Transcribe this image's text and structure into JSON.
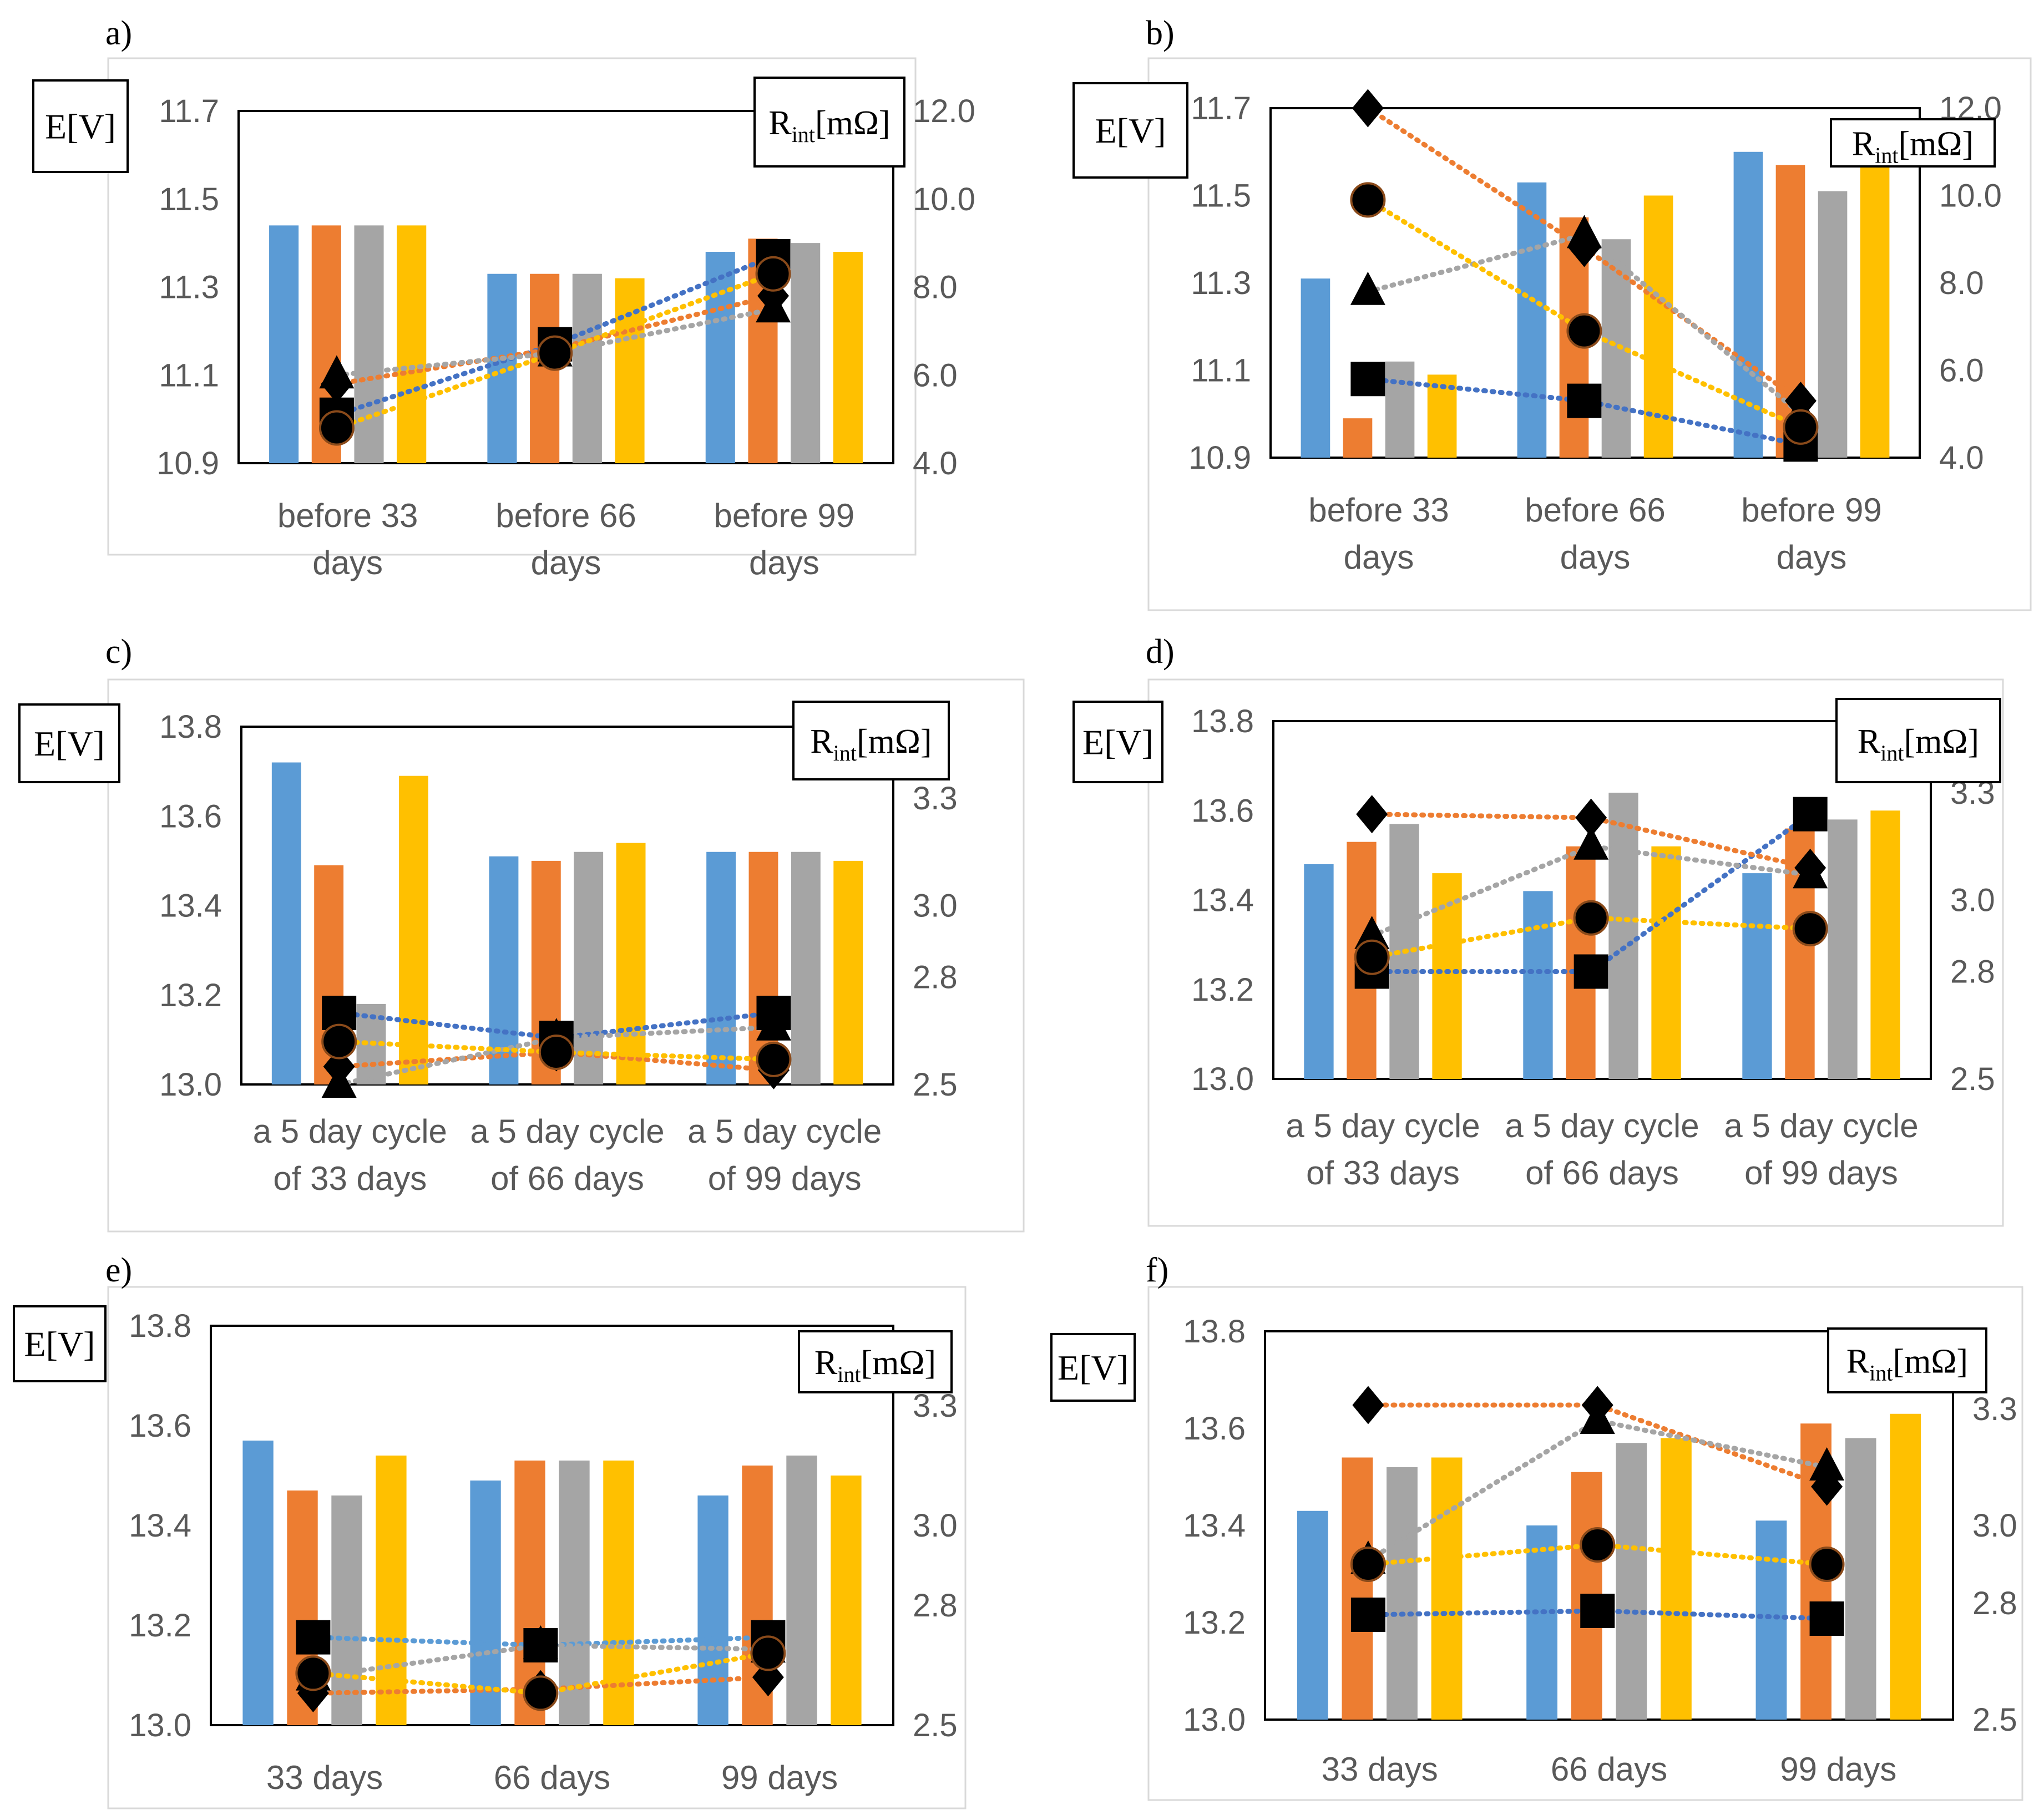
{
  "figure": {
    "layout": "3 rows x 2 columns",
    "series_colors": [
      "#5B9BD5",
      "#ED7D31",
      "#A5A5A5",
      "#FFC000"
    ],
    "marker_edge_color": "#000000"
  },
  "chart_data": [
    {
      "panel_label": "a)",
      "type": "bar",
      "left_axis_label": "E[V]",
      "right_axis_label": {
        "base": "R",
        "sub": "int",
        "unit": "[mΩ]"
      },
      "categories": [
        [
          "before  33",
          "days"
        ],
        [
          "before 66",
          "days"
        ],
        [
          "before 99",
          "days"
        ]
      ],
      "y_left": {
        "min": 10.9,
        "max": 11.7,
        "ticks": [
          "10.9",
          "11.1",
          "11.3",
          "11.5",
          "11.7"
        ]
      },
      "y_right": {
        "min": 4.0,
        "max": 12.0,
        "ticks": [
          "4.0",
          "6.0",
          "8.0",
          "10.0",
          "12.0"
        ]
      },
      "bars": [
        {
          "color": "#5B9BD5",
          "values": [
            11.44,
            11.33,
            11.38
          ]
        },
        {
          "color": "#ED7D31",
          "values": [
            11.44,
            11.33,
            11.41
          ]
        },
        {
          "color": "#A5A5A5",
          "values": [
            11.44,
            11.33,
            11.4
          ]
        },
        {
          "color": "#FFC000",
          "values": [
            11.44,
            11.32,
            11.38
          ]
        }
      ],
      "lines": [
        {
          "color": "#4472C4",
          "marker": "square",
          "values": [
            5.1,
            6.7,
            8.7
          ]
        },
        {
          "color": "#ED7D31",
          "marker": "diamond",
          "values": [
            5.8,
            6.6,
            7.8
          ]
        },
        {
          "color": "#A5A5A5",
          "marker": "triangle",
          "values": [
            6.0,
            6.5,
            7.5
          ]
        },
        {
          "color": "#FFC000",
          "marker": "circle",
          "values": [
            4.8,
            6.5,
            8.3
          ]
        }
      ]
    },
    {
      "panel_label": "b)",
      "type": "bar",
      "left_axis_label": "E[V]",
      "right_axis_label": {
        "base": "R",
        "sub": "int",
        "unit": "[mΩ]"
      },
      "categories": [
        [
          "before  33",
          "days"
        ],
        [
          "before 66",
          "days"
        ],
        [
          "before 99",
          "days"
        ]
      ],
      "y_left": {
        "min": 10.9,
        "max": 11.7,
        "ticks": [
          "10.9",
          "11.1",
          "11.3",
          "11.5",
          "11.7"
        ]
      },
      "y_right": {
        "min": 4.0,
        "max": 12.0,
        "ticks": [
          "4.0",
          "6.0",
          "8.0",
          "10.0",
          "12.0"
        ]
      },
      "bars": [
        {
          "color": "#5B9BD5",
          "values": [
            11.31,
            11.53,
            11.6
          ]
        },
        {
          "color": "#ED7D31",
          "values": [
            10.99,
            11.45,
            11.57
          ]
        },
        {
          "color": "#A5A5A5",
          "values": [
            11.12,
            11.4,
            11.51
          ]
        },
        {
          "color": "#FFC000",
          "values": [
            11.09,
            11.5,
            11.59
          ]
        }
      ],
      "lines": [
        {
          "color": "#4472C4",
          "marker": "square",
          "values": [
            5.8,
            5.3,
            4.3
          ]
        },
        {
          "color": "#ED7D31",
          "marker": "diamond",
          "values": [
            12.0,
            8.8,
            5.3
          ]
        },
        {
          "color": "#A5A5A5",
          "marker": "triangle",
          "values": [
            7.8,
            9.1,
            5.0
          ]
        },
        {
          "color": "#FFC000",
          "marker": "circle",
          "values": [
            9.9,
            6.9,
            4.7
          ]
        }
      ]
    },
    {
      "panel_label": "c)",
      "type": "bar",
      "left_axis_label": "E[V]",
      "right_axis_label": {
        "base": "R",
        "sub": "int",
        "unit": "[mΩ]"
      },
      "categories": [
        [
          "a 5 day cycle",
          "of 33 days"
        ],
        [
          "a 5 day cycle",
          "of 66 days"
        ],
        [
          "a 5 day cycle",
          "of 99 days"
        ]
      ],
      "y_left": {
        "min": 13.0,
        "max": 13.8,
        "ticks": [
          "13.0",
          "13.2",
          "13.4",
          "13.6",
          "13.8"
        ]
      },
      "y_right": {
        "min": 2.5,
        "max": 3.5,
        "ticks": [
          "2.5",
          "2.8",
          "3.0",
          "3.3"
        ]
      },
      "bars": [
        {
          "color": "#5B9BD5",
          "values": [
            13.72,
            13.51,
            13.52
          ]
        },
        {
          "color": "#ED7D31",
          "values": [
            13.49,
            13.5,
            13.52
          ]
        },
        {
          "color": "#A5A5A5",
          "values": [
            13.18,
            13.52,
            13.52
          ]
        },
        {
          "color": "#FFC000",
          "values": [
            13.69,
            13.54,
            13.5
          ]
        }
      ],
      "lines": [
        {
          "color": "#4472C4",
          "marker": "square",
          "values": [
            2.7,
            2.63,
            2.7
          ]
        },
        {
          "color": "#ED7D31",
          "marker": "diamond",
          "values": [
            2.55,
            2.59,
            2.54
          ]
        },
        {
          "color": "#A5A5A5",
          "marker": "triangle",
          "values": [
            2.5,
            2.63,
            2.66
          ]
        },
        {
          "color": "#FFC000",
          "marker": "circle",
          "values": [
            2.62,
            2.59,
            2.57
          ]
        }
      ]
    },
    {
      "panel_label": "d)",
      "type": "bar",
      "left_axis_label": "E[V]",
      "right_axis_label": {
        "base": "R",
        "sub": "int",
        "unit": "[mΩ]"
      },
      "categories": [
        [
          "a 5 day cycle",
          "of 33 days"
        ],
        [
          "a 5 day cycle",
          "of 66 days"
        ],
        [
          "a 5 day cycle",
          "of 99 days"
        ]
      ],
      "y_left": {
        "min": 13.0,
        "max": 13.8,
        "ticks": [
          "13.0",
          "13.2",
          "13.4",
          "13.6",
          "13.8"
        ]
      },
      "y_right": {
        "min": 2.5,
        "max": 3.5,
        "ticks": [
          "2.5",
          "2.8",
          "3.0",
          "3.3"
        ]
      },
      "bars": [
        {
          "color": "#5B9BD5",
          "values": [
            13.48,
            13.42,
            13.46
          ]
        },
        {
          "color": "#ED7D31",
          "values": [
            13.53,
            13.52,
            13.56
          ]
        },
        {
          "color": "#A5A5A5",
          "values": [
            13.57,
            13.64,
            13.58
          ]
        },
        {
          "color": "#FFC000",
          "values": [
            13.46,
            13.52,
            13.6
          ]
        }
      ],
      "lines": [
        {
          "color": "#4472C4",
          "marker": "square",
          "values": [
            2.8,
            2.8,
            3.24
          ]
        },
        {
          "color": "#ED7D31",
          "marker": "diamond",
          "values": [
            3.24,
            3.23,
            3.09
          ]
        },
        {
          "color": "#A5A5A5",
          "marker": "triangle",
          "values": [
            2.9,
            3.15,
            3.07
          ]
        },
        {
          "color": "#FFC000",
          "marker": "circle",
          "values": [
            2.84,
            2.95,
            2.92
          ]
        }
      ]
    },
    {
      "panel_label": "e)",
      "type": "bar",
      "left_axis_label": "E[V]",
      "right_axis_label": {
        "base": "R",
        "sub": "int",
        "unit": "[mΩ]"
      },
      "categories": [
        [
          "33 days"
        ],
        [
          "66 days"
        ],
        [
          "99 days"
        ]
      ],
      "y_left": {
        "min": 13.0,
        "max": 13.8,
        "ticks": [
          "13.0",
          "13.2",
          "13.4",
          "13.6",
          "13.8"
        ]
      },
      "y_right": {
        "min": 2.5,
        "max": 3.5,
        "ticks": [
          "2.5",
          "2.8",
          "3.0",
          "3.3"
        ]
      },
      "bars": [
        {
          "color": "#5B9BD5",
          "values": [
            13.57,
            13.49,
            13.46
          ]
        },
        {
          "color": "#ED7D31",
          "values": [
            13.47,
            13.53,
            13.52
          ]
        },
        {
          "color": "#A5A5A5",
          "values": [
            13.46,
            13.53,
            13.54
          ]
        },
        {
          "color": "#FFC000",
          "values": [
            13.54,
            13.53,
            13.5
          ]
        }
      ],
      "lines": [
        {
          "color": "#5B9BD5",
          "marker": "square",
          "values": [
            2.72,
            2.7,
            2.72
          ]
        },
        {
          "color": "#ED7D31",
          "marker": "diamond",
          "values": [
            2.58,
            2.59,
            2.62
          ]
        },
        {
          "color": "#A5A5A5",
          "marker": "triangle",
          "values": [
            2.62,
            2.7,
            2.69
          ]
        },
        {
          "color": "#FFC000",
          "marker": "circle",
          "values": [
            2.63,
            2.58,
            2.68
          ]
        }
      ]
    },
    {
      "panel_label": "f)",
      "type": "bar",
      "left_axis_label": "E[V]",
      "right_axis_label": {
        "base": "R",
        "sub": "int",
        "unit": "[mΩ]"
      },
      "categories": [
        [
          "33 days"
        ],
        [
          "66 days"
        ],
        [
          "99 days"
        ]
      ],
      "y_left": {
        "min": 13.0,
        "max": 13.8,
        "ticks": [
          "13.0",
          "13.2",
          "13.4",
          "13.6",
          "13.8"
        ]
      },
      "y_right": {
        "min": 2.5,
        "max": 3.5,
        "ticks": [
          "2.5",
          "2.8",
          "3.0",
          "3.3"
        ]
      },
      "bars": [
        {
          "color": "#5B9BD5",
          "values": [
            13.43,
            13.4,
            13.41
          ]
        },
        {
          "color": "#ED7D31",
          "values": [
            13.54,
            13.51,
            13.61
          ]
        },
        {
          "color": "#A5A5A5",
          "values": [
            13.52,
            13.57,
            13.58
          ]
        },
        {
          "color": "#FFC000",
          "values": [
            13.54,
            13.58,
            13.63
          ]
        }
      ],
      "lines": [
        {
          "color": "#4472C4",
          "marker": "square",
          "values": [
            2.77,
            2.78,
            2.76
          ]
        },
        {
          "color": "#ED7D31",
          "marker": "diamond",
          "values": [
            3.31,
            3.31,
            3.1
          ]
        },
        {
          "color": "#A5A5A5",
          "marker": "triangle",
          "values": [
            2.91,
            3.27,
            3.15
          ]
        },
        {
          "color": "#FFC000",
          "marker": "circle",
          "values": [
            2.9,
            2.95,
            2.9
          ]
        }
      ]
    }
  ]
}
